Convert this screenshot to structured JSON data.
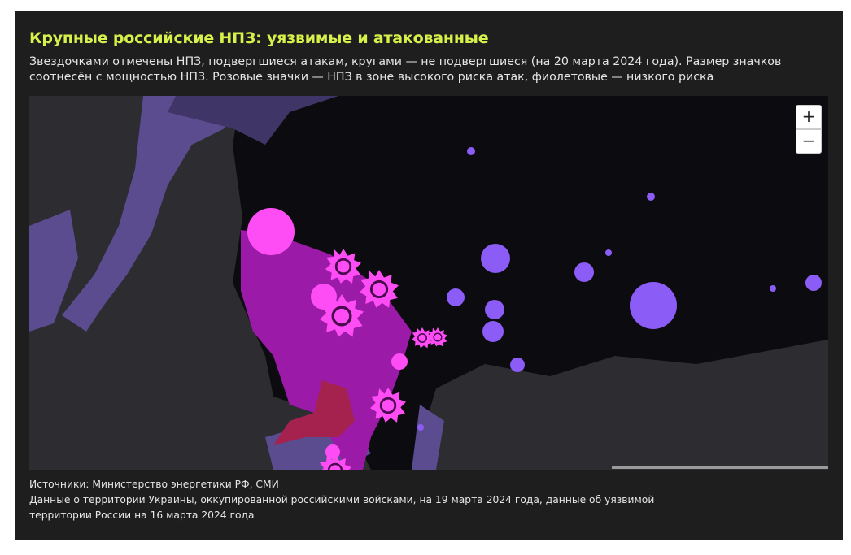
{
  "header": {
    "title": "Крупные российские НПЗ: уязвимые и атакованные",
    "subtitle": "Звездочками отмечены НПЗ, подвергшиеся атакам, кругами — не подвергшиеся (на 20 марта 2024 года). Размер значков соотнесён с мощностью НПЗ. Розовые значки — НПЗ в зоне высокого риска атак, фиолетовые — низкого риска"
  },
  "map": {
    "zoom_in": "+",
    "zoom_out": "−"
  },
  "footer": {
    "sources": "Источники: Министерство энергетики РФ, СМИ",
    "note": "Данные о территории Украины, оккупированной российскими войсками, на 19 марта 2024 года, данные об уязвимой территории России на 16 марта 2024 года"
  }
}
